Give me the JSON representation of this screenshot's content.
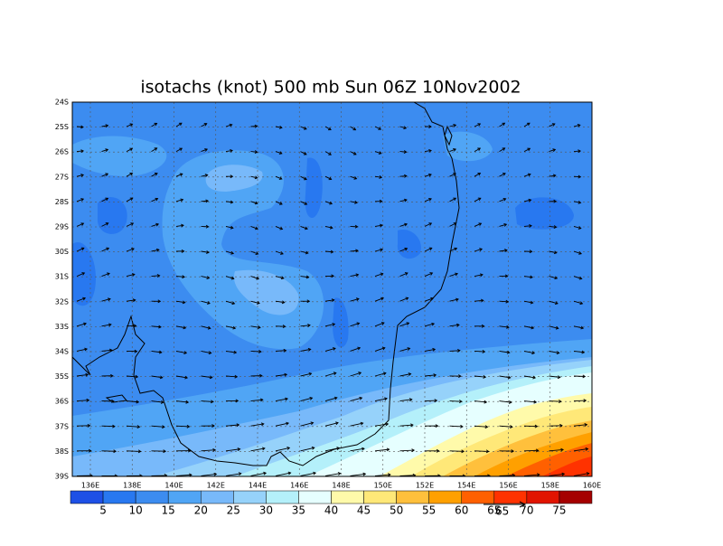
{
  "title": "isotachs (knot) 500 mb Sun 06Z 10Nov2002",
  "lat_labels": [
    "24S",
    "25S",
    "26S",
    "27S",
    "28S",
    "29S",
    "30S",
    "31S",
    "32S",
    "33S",
    "34S",
    "35S",
    "36S",
    "37S",
    "38S",
    "39S"
  ],
  "lon_labels": [
    "136E",
    "138E",
    "140E",
    "142E",
    "144E",
    "146E",
    "148E",
    "150E",
    "152E",
    "154E",
    "156E",
    "158E",
    "160E"
  ],
  "colorbar": {
    "labels": [
      "5",
      "10",
      "15",
      "20",
      "25",
      "30",
      "35",
      "40",
      "45",
      "50",
      "55",
      "60",
      "65",
      "70",
      "75"
    ],
    "colors": [
      "#1e50e6",
      "#2878f0",
      "#3c8cf0",
      "#50a5f5",
      "#78b9fa",
      "#96d2fa",
      "#b4f0fa",
      "#e6ffff",
      "#fffaaa",
      "#ffe878",
      "#ffc03c",
      "#ffa000",
      "#ff6000",
      "#ff3200",
      "#e11400",
      "#a50000"
    ]
  },
  "vector_ref_label": "65"
}
